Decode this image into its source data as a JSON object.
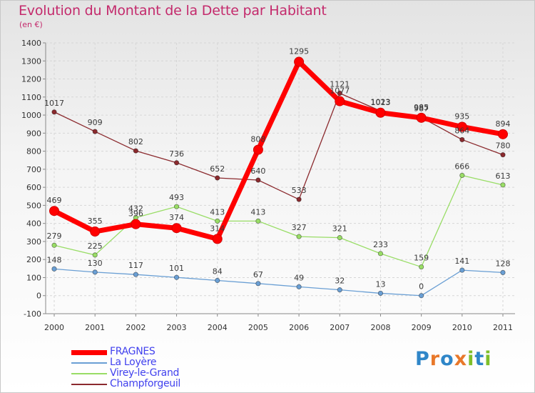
{
  "header": {
    "title": "Evolution du Montant de la Dette par Habitant",
    "subtitle": "(en €)"
  },
  "logo": {
    "text": "Proxiti",
    "letters": [
      {
        "ch": "P",
        "color": "#2f86c8"
      },
      {
        "ch": "r",
        "color": "#e8782a"
      },
      {
        "ch": "o",
        "color": "#2f86c8"
      },
      {
        "ch": "x",
        "color": "#e8782a"
      },
      {
        "ch": "i",
        "color": "#7fbf2a"
      },
      {
        "ch": "t",
        "color": "#2f86c8"
      },
      {
        "ch": "i",
        "color": "#7fbf2a"
      }
    ]
  },
  "chart_data": {
    "type": "line",
    "title": "Evolution du Montant de la Dette par Habitant",
    "subtitle": "(en €)",
    "x": [
      "2000",
      "2001",
      "2002",
      "2003",
      "2004",
      "2005",
      "2006",
      "2007",
      "2008",
      "2009",
      "2010",
      "2011"
    ],
    "ylim": [
      -100,
      1400
    ],
    "yticks": [
      "-100",
      "0",
      "100",
      "200",
      "300",
      "400",
      "500",
      "600",
      "700",
      "800",
      "900",
      "1000",
      "1100",
      "1200",
      "1300",
      "1400"
    ],
    "grid": "horizontal dashed",
    "legend": "bottom-left",
    "series": [
      {
        "name": "FRAGNES",
        "color": "#ff0000",
        "values": [
          469,
          355,
          396,
          374,
          314,
          808,
          1295,
          1077,
          1013,
          985,
          935,
          894
        ],
        "labels": [
          "469",
          "355",
          "396",
          "374",
          "314",
          "808",
          "1295",
          "1077",
          "1013",
          "985",
          "935",
          "894"
        ]
      },
      {
        "name": "La Loyère",
        "color": "#6a9fd4",
        "values": [
          148,
          130,
          117,
          101,
          84,
          67,
          49,
          32,
          13,
          0,
          141,
          128
        ],
        "labels": [
          "148",
          "130",
          "117",
          "101",
          "84",
          "67",
          "49",
          "32",
          "13",
          "0",
          "141",
          "128"
        ]
      },
      {
        "name": "Virey-le-Grand",
        "color": "#99dd66",
        "values": [
          279,
          225,
          432,
          493,
          413,
          413,
          327,
          321,
          233,
          159,
          666,
          613
        ],
        "labels": [
          "279",
          "225",
          "432",
          "493",
          "413",
          "413",
          "327",
          "321",
          "233",
          "159",
          "666",
          "613"
        ]
      },
      {
        "name": "Champforgeuil",
        "color": "#8b2a2e",
        "values": [
          1017,
          909,
          802,
          736,
          652,
          640,
          533,
          1121,
          1023,
          987,
          864,
          780
        ],
        "labels": [
          "1017",
          "909",
          "802",
          "736",
          "652",
          "640",
          "533",
          "1121",
          "1023",
          "987",
          "864",
          "780"
        ]
      }
    ]
  }
}
